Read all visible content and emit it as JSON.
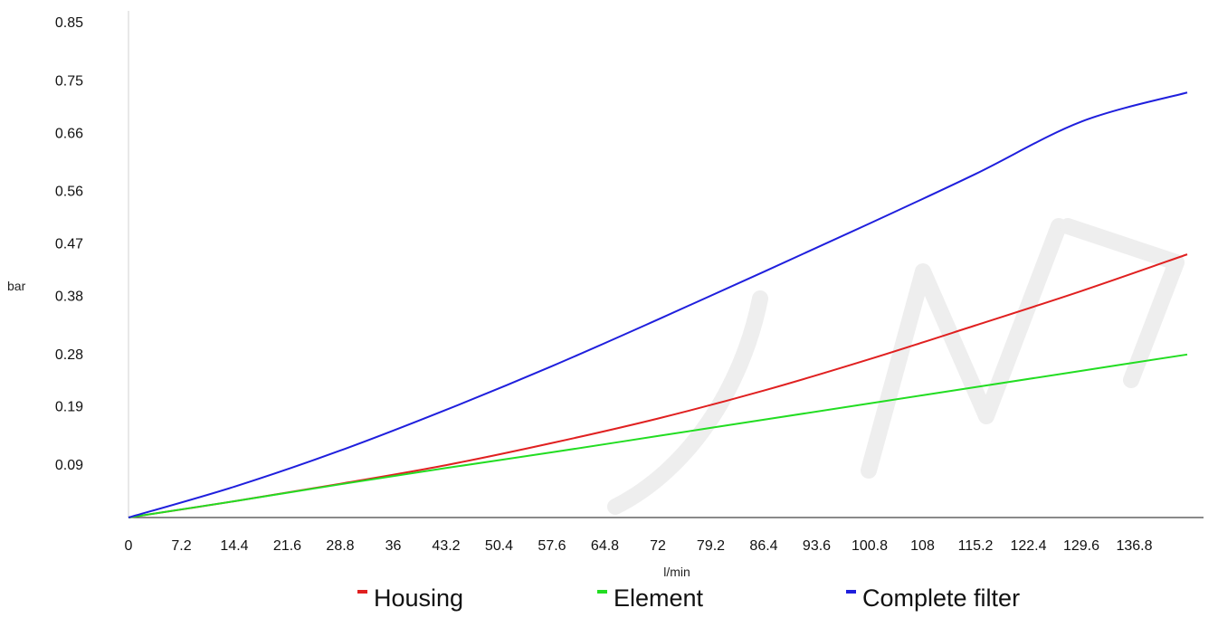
{
  "chart_data": {
    "type": "line",
    "title": "",
    "xlabel": "l/min",
    "ylabel": "bar",
    "x_ticks": [
      "0",
      "7.2",
      "14.4",
      "21.6",
      "28.8",
      "36",
      "43.2",
      "50.4",
      "57.6",
      "64.8",
      "72",
      "79.2",
      "86.4",
      "93.6",
      "100.8",
      "108",
      "115.2",
      "122.4",
      "129.6",
      "136.8"
    ],
    "y_ticks": [
      "0.09",
      "0.19",
      "0.28",
      "0.38",
      "0.47",
      "0.56",
      "0.66",
      "0.75",
      "0.85"
    ],
    "xlim": [
      0,
      144
    ],
    "ylim": [
      0,
      0.85
    ],
    "grid": false,
    "legend_position": "bottom",
    "x": [
      0,
      14.4,
      28.8,
      43.2,
      57.6,
      72,
      86.4,
      100.8,
      115.2,
      129.6,
      144
    ],
    "series": [
      {
        "name": "Housing",
        "color": "#e02020",
        "values": [
          0,
          0.028,
          0.058,
          0.09,
          0.128,
          0.17,
          0.218,
          0.272,
          0.33,
          0.389,
          0.452
        ]
      },
      {
        "name": "Element",
        "color": "#22dd22",
        "values": [
          0,
          0.028,
          0.057,
          0.085,
          0.112,
          0.14,
          0.168,
          0.196,
          0.224,
          0.252,
          0.28
        ]
      },
      {
        "name": "Complete filter",
        "color": "#1f1fdd",
        "values": [
          0,
          0.053,
          0.115,
          0.185,
          0.26,
          0.34,
          0.422,
          0.505,
          0.59,
          0.68,
          0.73
        ]
      }
    ]
  }
}
